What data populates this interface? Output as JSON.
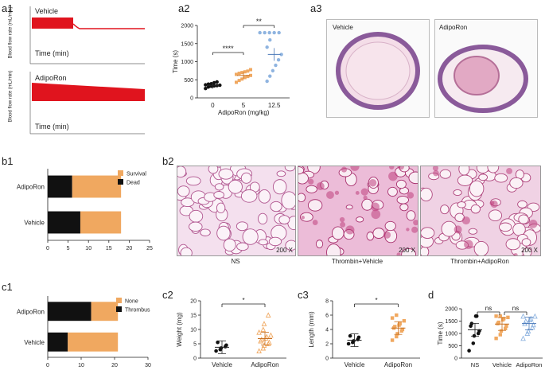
{
  "panel_labels": {
    "a1": "a1",
    "a2": "a2",
    "a3": "a3",
    "b1": "b1",
    "b2": "b2",
    "c1": "c1",
    "c2": "c2",
    "c3": "c3",
    "d": "d"
  },
  "a1": {
    "top_group": "Vehicle",
    "bottom_group": "AdipoRon",
    "ylabel": "Blood flow rate (mL/min)",
    "xlabel": "Time (min)",
    "ytick_top": "2.00",
    "color": "#e0141e"
  },
  "a3": {
    "left_label": "Vehicle",
    "right_label": "AdipoRon"
  },
  "b2": {
    "captions": [
      "NS",
      "Thrombin+Vehicle",
      "Thrombin+AdipoRon"
    ],
    "magnifications": [
      "200 X",
      "200 X",
      "200 X"
    ]
  },
  "colors": {
    "black": "#111111",
    "orange": "#f0a860",
    "blue": "#8fb4e0"
  },
  "chart_data": [
    {
      "id": "a2",
      "type": "scatter",
      "xlabel": "AdipoRon (mg/kg)",
      "ylabel": "Time (s)",
      "categories": [
        "0",
        "5",
        "12.5"
      ],
      "ylim": [
        0,
        2000
      ],
      "yticks": [
        "0",
        "500",
        "1000",
        "1500",
        "2000"
      ],
      "series": [
        {
          "values": [
            260,
            300,
            320,
            330,
            340,
            350,
            360,
            380,
            390,
            420,
            440
          ]
        },
        {
          "values": [
            430,
            480,
            520,
            560,
            590,
            620,
            650,
            680,
            700,
            720,
            740,
            780
          ]
        },
        {
          "values": [
            460,
            600,
            750,
            900,
            1050,
            1200,
            1400,
            1600,
            1800,
            1800,
            1800,
            1800,
            1800
          ]
        }
      ],
      "means": [
        345,
        620,
        1200
      ],
      "significance": [
        {
          "from": 0,
          "to": 1,
          "label": "****"
        },
        {
          "from": 1,
          "to": 2,
          "label": "**"
        }
      ]
    },
    {
      "id": "b1",
      "type": "bar",
      "categories": [
        "AdipoRon",
        "Vehicle"
      ],
      "series": [
        {
          "name": "Dead",
          "values": [
            6,
            8
          ]
        },
        {
          "name": "Survival",
          "values": [
            12,
            10
          ]
        }
      ],
      "xlim": [
        0,
        25
      ],
      "xticks": [
        "0",
        "5",
        "10",
        "15",
        "20",
        "25"
      ],
      "legend": "top-right"
    },
    {
      "id": "c1",
      "type": "bar",
      "categories": [
        "AdipoRon",
        "Vehicle"
      ],
      "series": [
        {
          "name": "Thrombus",
          "values": [
            13,
            6
          ]
        },
        {
          "name": "None",
          "values": [
            8,
            15
          ]
        }
      ],
      "xlim": [
        0,
        30
      ],
      "xticks": [
        "0",
        "10",
        "20",
        "30"
      ],
      "legend": "top-right"
    },
    {
      "id": "c2",
      "type": "scatter",
      "ylabel": "Weight (mg)",
      "categories": [
        "Vehicle",
        "AdipoRon"
      ],
      "ylim": [
        0,
        20
      ],
      "yticks": [
        "0",
        "5",
        "10",
        "15",
        "20"
      ],
      "series": [
        {
          "values": [
            2.5,
            3,
            3.5,
            4,
            4.5,
            5.5
          ]
        },
        {
          "values": [
            2.5,
            3.5,
            4.5,
            5,
            5.5,
            6,
            6.5,
            7,
            7.5,
            8,
            9,
            10,
            12,
            15
          ]
        }
      ],
      "means": [
        3.8,
        6.8
      ],
      "significance": [
        {
          "from": 0,
          "to": 1,
          "label": "*"
        }
      ]
    },
    {
      "id": "c3",
      "type": "scatter",
      "ylabel": "Length (mm)",
      "categories": [
        "Vehicle",
        "AdipoRon"
      ],
      "ylim": [
        0,
        8
      ],
      "yticks": [
        "0",
        "2",
        "4",
        "6",
        "8"
      ],
      "series": [
        {
          "values": [
            2,
            2.2,
            2.4,
            2.6,
            2.9,
            3.1
          ]
        },
        {
          "values": [
            2.5,
            3,
            3.4,
            3.8,
            4,
            4.2,
            4.4,
            4.6,
            4.8,
            5.2,
            5.6,
            6
          ]
        },
        {
          "values": []
        }
      ],
      "means": [
        2.5,
        4.2
      ],
      "significance": [
        {
          "from": 0,
          "to": 1,
          "label": "*"
        }
      ]
    },
    {
      "id": "d",
      "type": "scatter",
      "ylabel": "Time (s)",
      "categories": [
        "NS",
        "Vehicle",
        "AdipoRon"
      ],
      "ylim": [
        0,
        2000
      ],
      "yticks": [
        "0",
        "500",
        "1000",
        "1500",
        "2000"
      ],
      "series": [
        {
          "values": [
            300,
            600,
            900,
            1000,
            1100,
            1300,
            1400,
            1700,
            1700
          ]
        },
        {
          "values": [
            800,
            950,
            1100,
            1200,
            1300,
            1400,
            1450,
            1550,
            1600,
            1650,
            1700,
            1700
          ]
        },
        {
          "values": [
            800,
            1000,
            1100,
            1250,
            1350,
            1400,
            1500,
            1550,
            1600,
            1700,
            1700
          ]
        }
      ],
      "means": [
        1150,
        1380,
        1400
      ],
      "significance": [
        {
          "from": 0,
          "to": 1,
          "label": "ns"
        },
        {
          "from": 1,
          "to": 2,
          "label": "ns"
        }
      ]
    }
  ]
}
